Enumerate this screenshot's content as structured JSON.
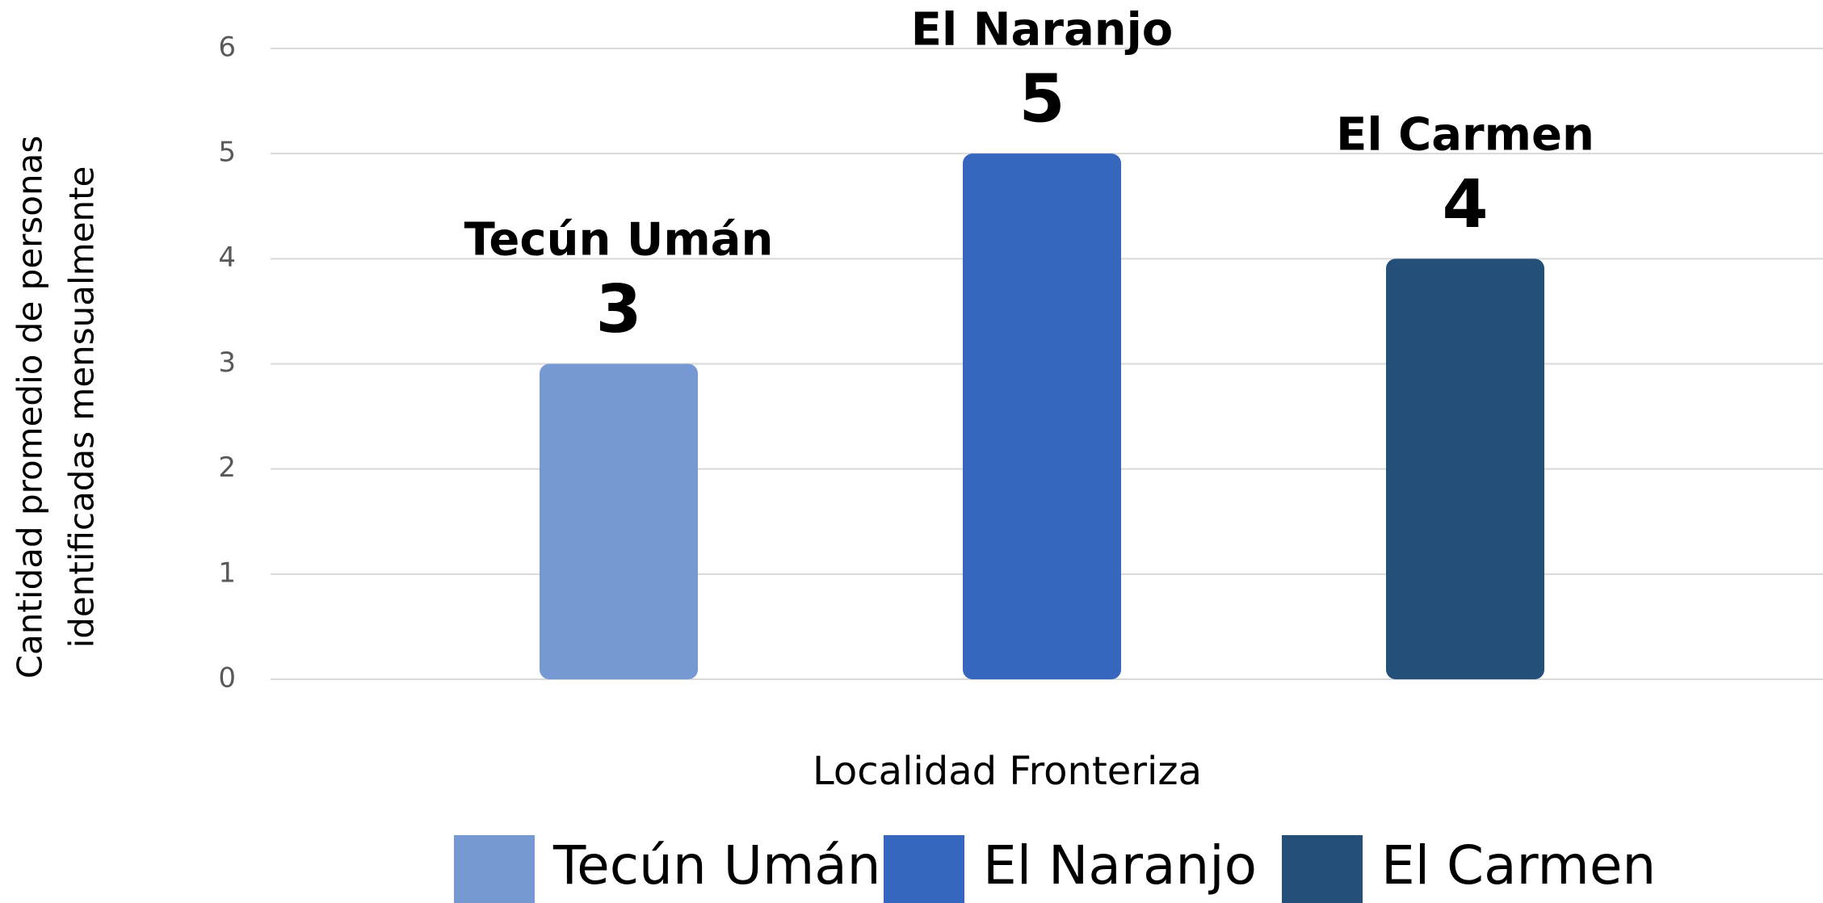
{
  "chart_data": {
    "type": "bar",
    "categories": [
      null
    ],
    "series": [
      {
        "name": "Tecún Umán",
        "color": "#7799d3",
        "values": [
          3
        ]
      },
      {
        "name": "El Naranjo",
        "color": "#3766be",
        "values": [
          5
        ]
      },
      {
        "name": "El Carmen",
        "color": "#234f78",
        "values": [
          4
        ]
      }
    ],
    "x_label": "Localidad Fronteriza",
    "y_label": [
      "Cantidad promedio de personas",
      "identificadas mensualmente"
    ],
    "ylim": [
      0,
      6
    ],
    "yticks": [
      0,
      1,
      2,
      3,
      4,
      5,
      6
    ],
    "grid": true,
    "legend": "bottom"
  }
}
